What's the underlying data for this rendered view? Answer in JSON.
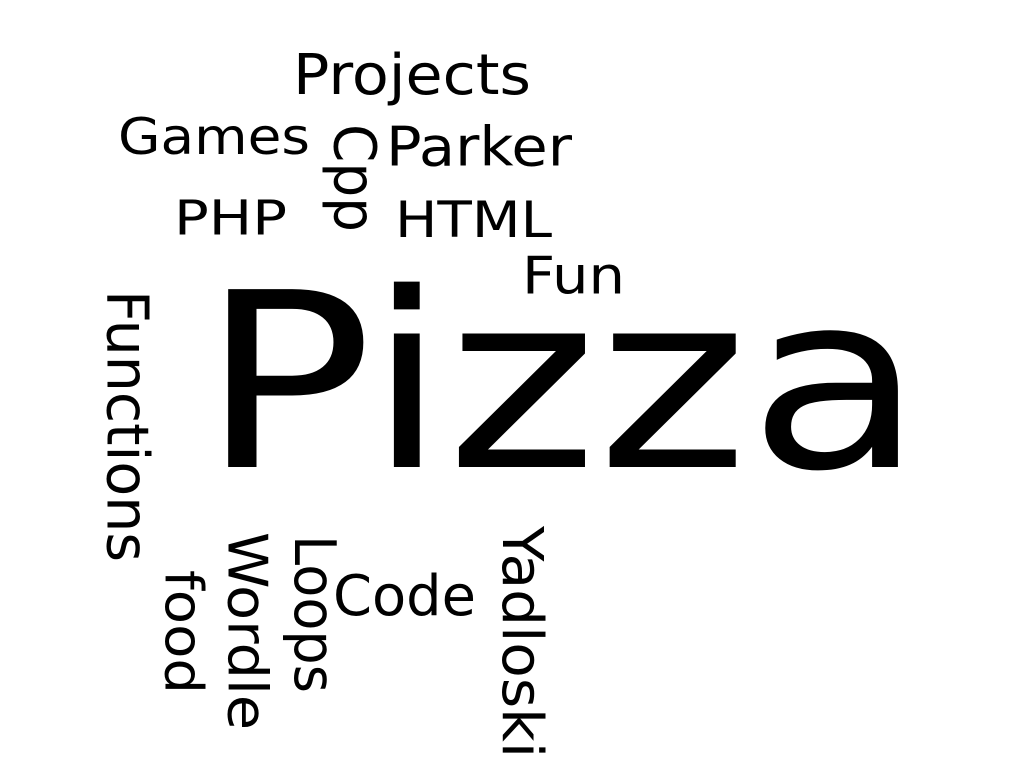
{
  "cloud": {
    "text_color": "#000000",
    "background": "#ffffff",
    "words": [
      {
        "text": "Pizza",
        "orientation": "horizontal"
      },
      {
        "text": "Projects",
        "orientation": "horizontal"
      },
      {
        "text": "Games",
        "orientation": "horizontal"
      },
      {
        "text": "Parker",
        "orientation": "horizontal"
      },
      {
        "text": "Cpp",
        "orientation": "vertical"
      },
      {
        "text": "PHP",
        "orientation": "horizontal"
      },
      {
        "text": "HTML",
        "orientation": "horizontal"
      },
      {
        "text": "Fun",
        "orientation": "horizontal"
      },
      {
        "text": "Functions",
        "orientation": "vertical"
      },
      {
        "text": "food",
        "orientation": "vertical"
      },
      {
        "text": "Wordle",
        "orientation": "vertical"
      },
      {
        "text": "Loops",
        "orientation": "vertical"
      },
      {
        "text": "Code",
        "orientation": "horizontal"
      },
      {
        "text": "Yadloski",
        "orientation": "vertical"
      }
    ]
  }
}
